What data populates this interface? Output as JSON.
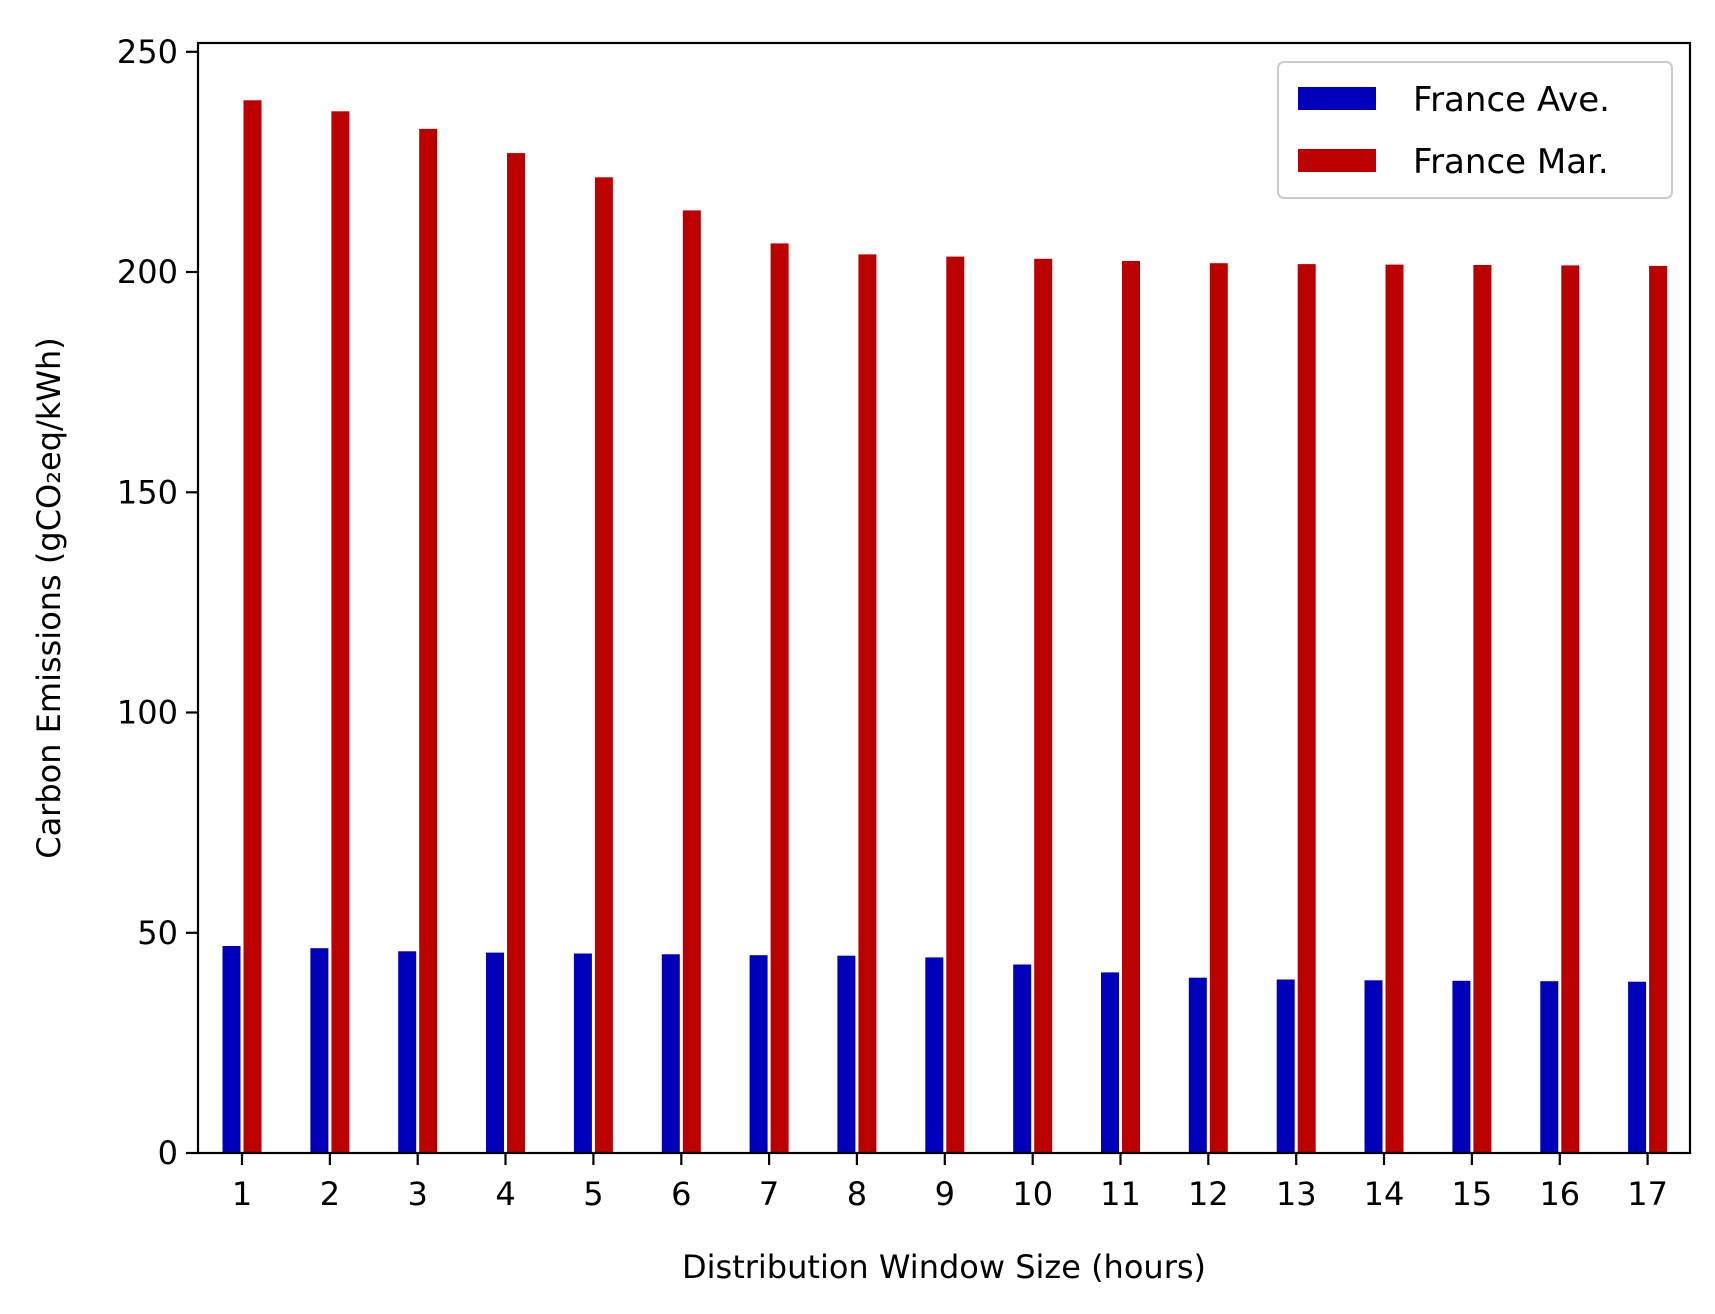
{
  "chart_data": {
    "type": "bar",
    "title": "",
    "xlabel": "Distribution Window Size (hours)",
    "ylabel": "Carbon Emissions (gCO₂eq/kWh)",
    "ylim": [
      0,
      252
    ],
    "yticks": [
      0,
      50,
      100,
      150,
      200,
      250
    ],
    "categories": [
      "1",
      "2",
      "3",
      "4",
      "5",
      "6",
      "7",
      "8",
      "9",
      "10",
      "11",
      "12",
      "13",
      "14",
      "15",
      "16",
      "17"
    ],
    "series": [
      {
        "name": "France Ave.",
        "color": "#0000bb",
        "values": [
          47.0,
          46.5,
          45.8,
          45.5,
          45.3,
          45.1,
          44.9,
          44.8,
          44.4,
          42.8,
          41.0,
          39.8,
          39.4,
          39.2,
          39.1,
          39.0,
          38.9
        ]
      },
      {
        "name": "France Mar.",
        "color": "#bb0000",
        "values": [
          239.0,
          236.5,
          232.5,
          227.0,
          221.5,
          214.0,
          206.5,
          204.0,
          203.5,
          203.0,
          202.5,
          202.0,
          201.8,
          201.7,
          201.6,
          201.5,
          201.4
        ]
      }
    ],
    "legend_position": "upper-right",
    "grid": false
  }
}
